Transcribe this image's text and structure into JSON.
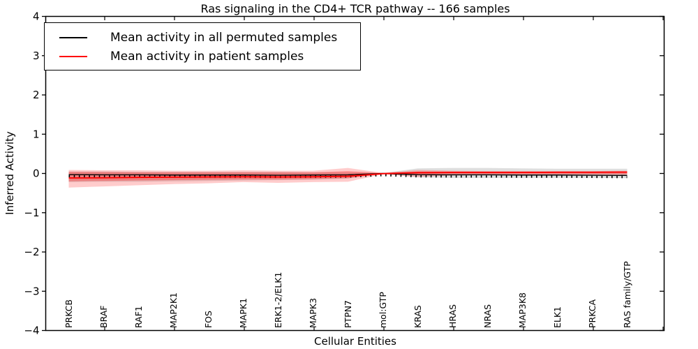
{
  "chart_data": {
    "type": "line",
    "title": "Ras signaling in the CD4+ TCR pathway -- 166 samples",
    "xlabel": "Cellular Entities",
    "ylabel": "Inferred Activity",
    "ylim": [
      -4,
      4
    ],
    "yticks": [
      4,
      3,
      2,
      1,
      0,
      -1,
      -2,
      -3,
      -4
    ],
    "ytick_labels": [
      "4",
      "3",
      "2",
      "1",
      "0",
      "−1",
      "−2",
      "−3",
      "−4"
    ],
    "grid": false,
    "legend_position": "upper left",
    "xtick_rotation": 90,
    "categories": [
      "PRKCB",
      "BRAF",
      "RAF1",
      "MAP2K1",
      "FOS",
      "MAPK1",
      "ERK1-2/ELK1",
      "MAPK3",
      "PTPN7",
      "mol:GTP",
      "KRAS",
      "HRAS",
      "NRAS",
      "MAP3K8",
      "ELK1",
      "PRKCA",
      "RAS family/GTP"
    ],
    "series": [
      {
        "name": "Mean activity in all permuted samples",
        "color": "#000000",
        "values": [
          -0.03,
          -0.035,
          -0.035,
          -0.04,
          -0.04,
          -0.04,
          -0.045,
          -0.04,
          -0.035,
          0.0,
          -0.03,
          -0.035,
          -0.035,
          -0.04,
          -0.04,
          -0.045,
          -0.05
        ]
      },
      {
        "name": "Mean activity in patient samples",
        "color": "#ff0000",
        "values": [
          -0.115,
          -0.11,
          -0.1,
          -0.095,
          -0.09,
          -0.085,
          -0.09,
          -0.085,
          -0.07,
          -0.005,
          0.02,
          0.025,
          0.025,
          0.025,
          0.03,
          0.03,
          0.035
        ]
      }
    ],
    "bands": [
      {
        "name": "permuted-spread",
        "color": "#000000",
        "opacity": 0.13,
        "hi": [
          0.05,
          0.05,
          0.04,
          0.04,
          0.04,
          0.04,
          0.04,
          0.03,
          0.03,
          0.01,
          0.13,
          0.14,
          0.14,
          0.13,
          0.12,
          0.12,
          0.12
        ],
        "lo": [
          -0.22,
          -0.21,
          -0.21,
          -0.2,
          -0.19,
          -0.18,
          -0.17,
          -0.16,
          -0.13,
          -0.01,
          -0.1,
          -0.11,
          -0.11,
          -0.11,
          -0.11,
          -0.11,
          -0.12
        ]
      },
      {
        "name": "patient-spread-outer",
        "color": "#ff0000",
        "opacity": 0.2,
        "hi": [
          0.09,
          0.08,
          0.08,
          0.07,
          0.07,
          0.08,
          0.07,
          0.07,
          0.14,
          0.015,
          0.09,
          0.07,
          0.06,
          0.06,
          0.06,
          0.06,
          0.07
        ],
        "lo": [
          -0.36,
          -0.33,
          -0.3,
          -0.27,
          -0.25,
          -0.22,
          -0.24,
          -0.22,
          -0.21,
          -0.02,
          -0.09,
          -0.05,
          -0.04,
          -0.04,
          -0.04,
          -0.03,
          -0.04
        ]
      },
      {
        "name": "patient-spread-inner",
        "color": "#ff0000",
        "opacity": 0.28,
        "hi": [
          0.04,
          0.035,
          0.03,
          0.03,
          0.03,
          0.03,
          0.03,
          0.03,
          0.06,
          0.01,
          0.05,
          0.05,
          0.05,
          0.05,
          0.05,
          0.05,
          0.05
        ],
        "lo": [
          -0.2,
          -0.19,
          -0.18,
          -0.17,
          -0.16,
          -0.15,
          -0.15,
          -0.14,
          -0.12,
          -0.01,
          -0.02,
          -0.01,
          -0.01,
          -0.01,
          -0.01,
          -0.01,
          -0.01
        ]
      }
    ]
  }
}
